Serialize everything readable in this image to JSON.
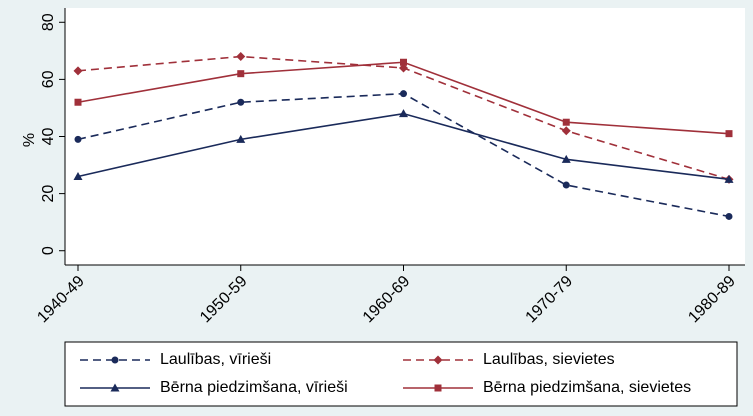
{
  "chart_data": {
    "type": "line",
    "categories": [
      "1940-49",
      "1950-59",
      "1960-69",
      "1970-79",
      "1980-89"
    ],
    "y_label": "%",
    "ylim": [
      -5,
      85
    ],
    "yticks": [
      0,
      20,
      40,
      60,
      80
    ],
    "legend": "bottom",
    "series": [
      {
        "name": "Laulības, vīrieši",
        "color": "#1a2a5a",
        "dash": true,
        "marker": "circle",
        "values": [
          39,
          52,
          55,
          23,
          12
        ]
      },
      {
        "name": "Laulības, sievietes",
        "color": "#a0303a",
        "dash": true,
        "marker": "diamond",
        "values": [
          63,
          68,
          64,
          42,
          25
        ]
      },
      {
        "name": "Bērna piedzimšana, vīrieši",
        "color": "#1a2a5a",
        "dash": false,
        "marker": "triangle",
        "values": [
          26,
          39,
          48,
          32,
          25
        ]
      },
      {
        "name": "Bērna piedzimšana, sievietes",
        "color": "#a0303a",
        "dash": false,
        "marker": "square",
        "values": [
          52,
          62,
          66,
          45,
          41
        ]
      }
    ]
  }
}
